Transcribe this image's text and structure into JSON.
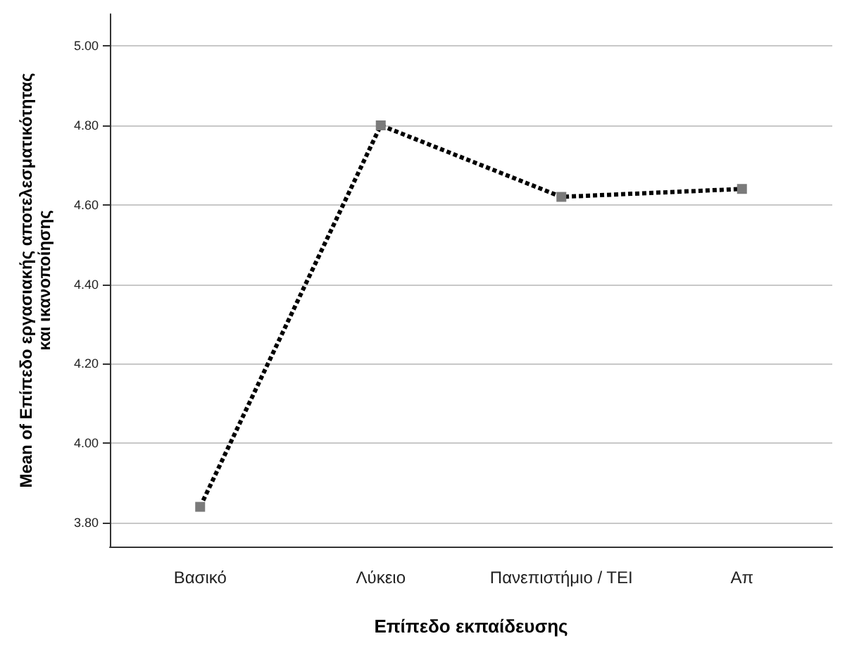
{
  "chart_data": {
    "type": "line",
    "xlabel": "Επίπεδο εκπαίδευσης",
    "ylabel": "Mean of Επίπεδο εργασιακής αποτελεσματικότητας και ικανοποίησης",
    "categories": [
      "Βασικό",
      "Λύκειο",
      "Πανεπιστήμιο / ΤΕΙ",
      "Απ"
    ],
    "series": [
      {
        "color": "#000000",
        "values": [
          3.84,
          4.8,
          4.62,
          4.64
        ]
      }
    ],
    "ylim": [
      3.74,
      5.08
    ],
    "yticks": [
      {
        "value": 3.8,
        "label": "3.80"
      },
      {
        "value": 4.0,
        "label": "4.00"
      },
      {
        "value": 4.2,
        "label": "4.20"
      },
      {
        "value": 4.4,
        "label": "4.40"
      },
      {
        "value": 4.6,
        "label": "4.60"
      },
      {
        "value": 4.8,
        "label": "4.80"
      },
      {
        "value": 5.0,
        "label": "5.00"
      }
    ],
    "grid": "y",
    "marker": "square",
    "line_style": "dotted"
  }
}
